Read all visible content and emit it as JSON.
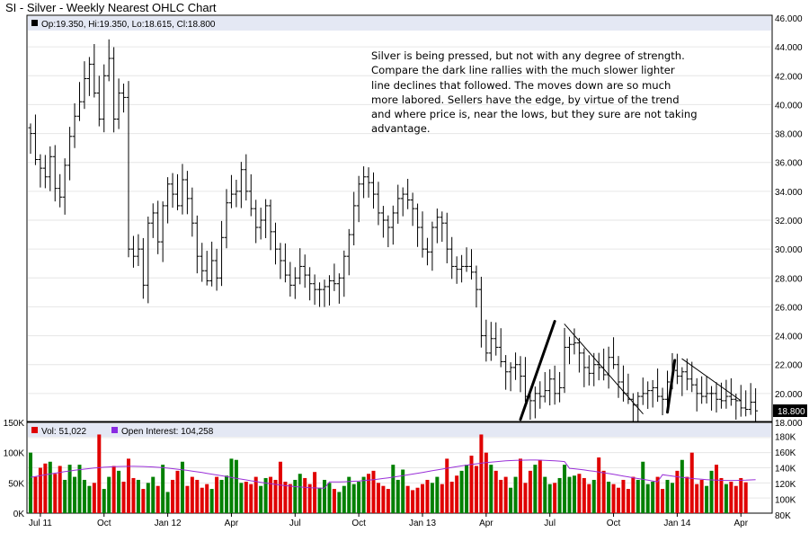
{
  "chart_data": {
    "type": "ohlc",
    "title": "SI - Silver - Weekly Nearest OHLC Chart",
    "ohlc_info": "Op:19.350, Hi:19.350, Lo:18.615, Cl:18.800",
    "last_price_label": "18.800",
    "volume_legend": "Vol: 51,022",
    "oi_legend": "Open Interest: 104,258",
    "annotation": [
      "Silver is being pressed, but not with any degree of strength.",
      "Compare the dark line rallies with the much slower lighter",
      "line declines that followed.    The moves down are so much",
      "more labored.  Sellers have the edge, by virtue of the trend",
      "and where price is, near the lows, but they sure are not taking",
      "advantage."
    ],
    "price_axis": {
      "ylim": [
        18,
        46
      ],
      "ticks": [
        "18.000",
        "20.000",
        "22.000",
        "24.000",
        "26.000",
        "28.000",
        "30.000",
        "32.000",
        "34.000",
        "36.000",
        "38.000",
        "40.000",
        "42.000",
        "44.000",
        "46.000"
      ]
    },
    "volume_axis": {
      "ylim": [
        0,
        150000
      ],
      "ticks": [
        "0K",
        "50K",
        "100K",
        "150K"
      ]
    },
    "oi_axis": {
      "ylim": [
        80000,
        190000
      ],
      "ticks": [
        "80K",
        "100K",
        "120K",
        "140K",
        "160K",
        "180K"
      ]
    },
    "x_axis": {
      "labels": [
        "Jul 11",
        "Oct",
        "Jan 12",
        "Apr",
        "Jul",
        "Oct",
        "Jan 13",
        "Apr",
        "Jul",
        "Oct",
        "Jan 14",
        "Apr"
      ],
      "label_weeks": [
        2,
        15,
        28,
        41,
        54,
        67,
        80,
        93,
        106,
        119,
        132,
        145
      ]
    },
    "colors": {
      "up": "#008000",
      "down": "#e00000",
      "price_bar": "#000000",
      "oi": "#9a30d8",
      "grid": "#e6e6e6"
    },
    "weekly_closes": [
      38.0,
      36.2,
      35.6,
      35.0,
      36.4,
      34.2,
      33.6,
      35.8,
      37.8,
      39.2,
      40.2,
      41.8,
      42.8,
      40.8,
      39.0,
      42.0,
      43.2,
      39.0,
      40.8,
      40.5,
      30.0,
      29.5,
      30.0,
      27.5,
      31.8,
      32.5,
      30.5,
      33.0,
      34.5,
      33.8,
      33.0,
      34.8,
      33.5,
      31.8,
      29.5,
      28.5,
      27.8,
      29.2,
      28.0,
      30.8,
      33.2,
      33.8,
      34.0,
      35.5,
      34.0,
      32.8,
      31.5,
      32.0,
      33.0,
      31.2,
      30.0,
      29.2,
      28.2,
      27.5,
      28.0,
      28.8,
      28.2,
      27.6,
      27.2,
      27.2,
      27.4,
      27.8,
      27.6,
      28.0,
      29.5,
      31.0,
      33.0,
      34.5,
      35.0,
      34.6,
      33.8,
      32.5,
      32.0,
      31.5,
      32.5,
      33.5,
      33.8,
      33.4,
      32.8,
      31.5,
      30.0,
      29.8,
      31.5,
      32.2,
      31.8,
      30.0,
      28.8,
      28.6,
      28.8,
      28.8,
      28.4,
      27.2,
      24.0,
      22.8,
      23.8,
      23.2,
      22.2,
      21.5,
      21.8,
      22.0,
      21.2,
      19.8,
      19.5,
      20.0,
      19.8,
      20.2,
      21.0,
      20.0,
      20.4,
      23.2,
      23.4,
      23.5,
      22.8,
      21.8,
      21.4,
      22.0,
      21.8,
      21.3,
      22.5,
      22.0,
      20.8,
      20.0,
      19.6,
      19.2,
      19.8,
      20.0,
      20.2,
      20.4,
      19.8,
      19.6,
      20.8,
      21.6,
      21.2,
      21.5,
      21.0,
      20.6,
      20.0,
      19.8,
      20.0,
      20.0,
      19.6,
      19.5,
      19.8,
      19.6,
      19.5,
      19.0,
      18.9,
      19.4,
      18.8
    ],
    "weekly_volume": [
      100000,
      60000,
      75000,
      82000,
      85000,
      65000,
      78000,
      55000,
      80000,
      60000,
      80000,
      55000,
      45000,
      50000,
      130000,
      40000,
      60000,
      78000,
      70000,
      52000,
      90000,
      58000,
      55000,
      40000,
      50000,
      60000,
      45000,
      80000,
      35000,
      55000,
      70000,
      85000,
      45000,
      60000,
      55000,
      42000,
      48000,
      40000,
      60000,
      55000,
      62000,
      90000,
      88000,
      50000,
      52000,
      48000,
      60000,
      45000,
      58000,
      60000,
      55000,
      85000,
      52000,
      48000,
      55000,
      65000,
      58000,
      48000,
      68000,
      42000,
      55000,
      50000,
      40000,
      35000,
      45000,
      60000,
      48000,
      52000,
      60000,
      65000,
      70000,
      50000,
      45000,
      40000,
      80000,
      55000,
      72000,
      45000,
      38000,
      42000,
      48000,
      55000,
      50000,
      60000,
      48000,
      90000,
      52000,
      62000,
      70000,
      80000,
      95000,
      78000,
      130000,
      100000,
      80000,
      70000,
      55000,
      60000,
      42000,
      60000,
      90000,
      50000,
      70000,
      80000,
      88000,
      60000,
      48000,
      50000,
      58000,
      80000,
      60000,
      62000,
      65000,
      58000,
      48000,
      55000,
      92000,
      70000,
      52000,
      48000,
      42000,
      55000,
      40000,
      60000,
      55000,
      85000,
      48000,
      52000,
      60000,
      40000,
      55000,
      50000,
      70000,
      88000,
      60000,
      100000,
      48000,
      55000,
      45000,
      70000,
      80000,
      58000,
      48000,
      52000,
      45000,
      58000,
      51022
    ]
  }
}
